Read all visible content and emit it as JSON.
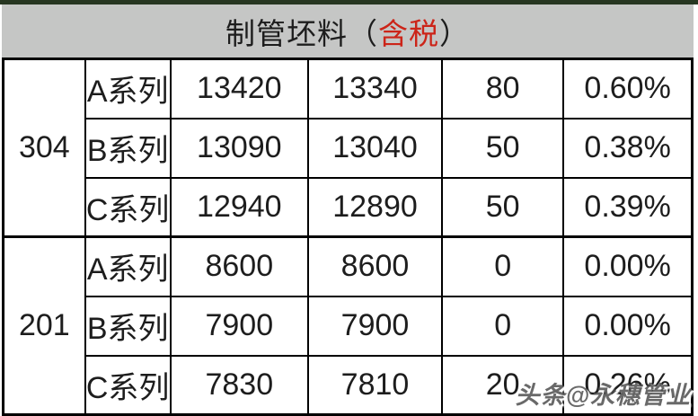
{
  "chart_data": {
    "type": "table",
    "title": "制管坯料（含税）",
    "title_parts": {
      "prefix": "制管坯料（",
      "highlight": "含税",
      "suffix": "）"
    },
    "groups": [
      {
        "grade": "304",
        "rows": [
          {
            "series": "A系列",
            "price1": "13420",
            "price2": "13340",
            "change": "80",
            "change_is_red": true,
            "pct": "0.60%"
          },
          {
            "series": "B系列",
            "price1": "13090",
            "price2": "13040",
            "change": "50",
            "change_is_red": true,
            "pct": "0.38%"
          },
          {
            "series": "C系列",
            "price1": "12940",
            "price2": "12890",
            "change": "50",
            "change_is_red": true,
            "pct": "0.39%"
          }
        ]
      },
      {
        "grade": "201",
        "rows": [
          {
            "series": "A系列",
            "price1": "8600",
            "price2": "8600",
            "change": "0",
            "change_is_red": false,
            "pct": "0.00%"
          },
          {
            "series": "B系列",
            "price1": "7900",
            "price2": "7900",
            "change": "0",
            "change_is_red": false,
            "pct": "0.00%"
          },
          {
            "series": "C系列",
            "price1": "7830",
            "price2": "7810",
            "change": "20",
            "change_is_red": true,
            "pct": "0.26%"
          }
        ]
      }
    ]
  },
  "watermark": "头条@永穗管业",
  "colors": {
    "accent_red": "#cc2418",
    "header_bg": "#c5c6c5",
    "top_bar_green": "#273621",
    "border_black": "#000000",
    "text_black": "#1d1d1d"
  }
}
